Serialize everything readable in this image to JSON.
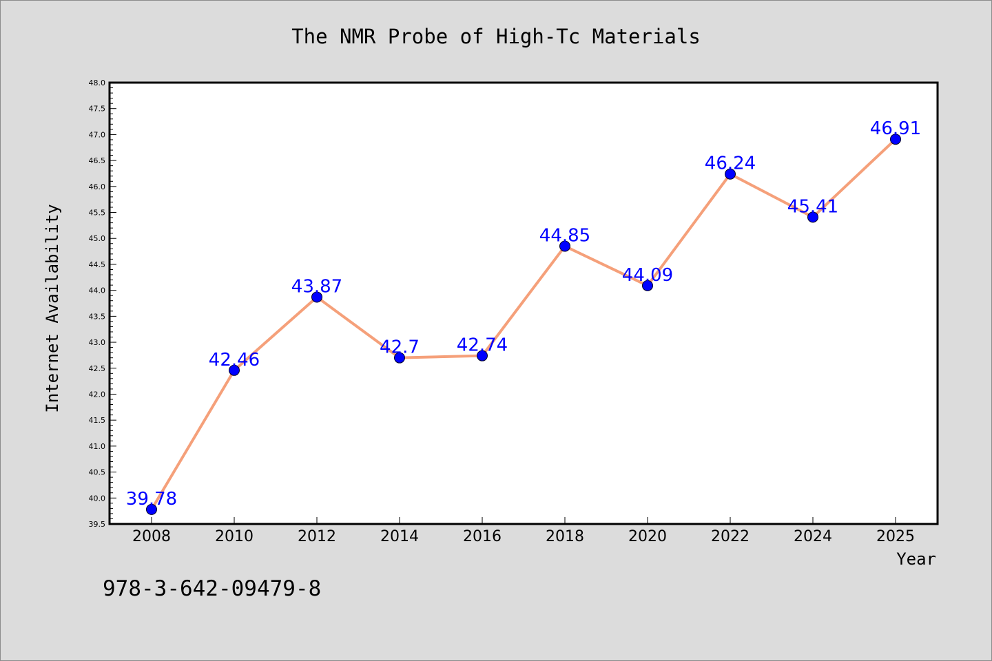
{
  "chart_data": {
    "type": "line",
    "title": "The NMR Probe of High-Tc Materials",
    "xlabel": "Year",
    "ylabel": "Internet Availability",
    "categories": [
      "2008",
      "2010",
      "2012",
      "2014",
      "2016",
      "2018",
      "2020",
      "2022",
      "2024",
      "2025"
    ],
    "series": [
      {
        "values": [
          39.78,
          42.46,
          43.87,
          42.7,
          42.74,
          44.85,
          44.09,
          46.24,
          45.41,
          46.91
        ],
        "labels": [
          "39.78",
          "42.46",
          "43.87",
          "42.7",
          "42.74",
          "44.85",
          "44.09",
          "46.24",
          "45.41",
          "46.91"
        ]
      }
    ],
    "ylim": [
      39.5,
      48.0
    ],
    "y_ticks": [
      "39.5",
      "40.0",
      "40.5",
      "41.0",
      "41.5",
      "42.0",
      "42.5",
      "43.0",
      "43.5",
      "44.0",
      "44.5",
      "45.0",
      "45.5",
      "46.0",
      "46.5",
      "47.0",
      "47.5",
      "48.0"
    ],
    "grid": false,
    "legend": "none",
    "colors": {
      "line": "#f5a07a",
      "marker": "#0000ff",
      "data_label": "#0000ff",
      "plot_background": "#ffffff",
      "page_background": "#dcdcdc"
    }
  },
  "footer": {
    "text": "978-3-642-09479-8"
  }
}
